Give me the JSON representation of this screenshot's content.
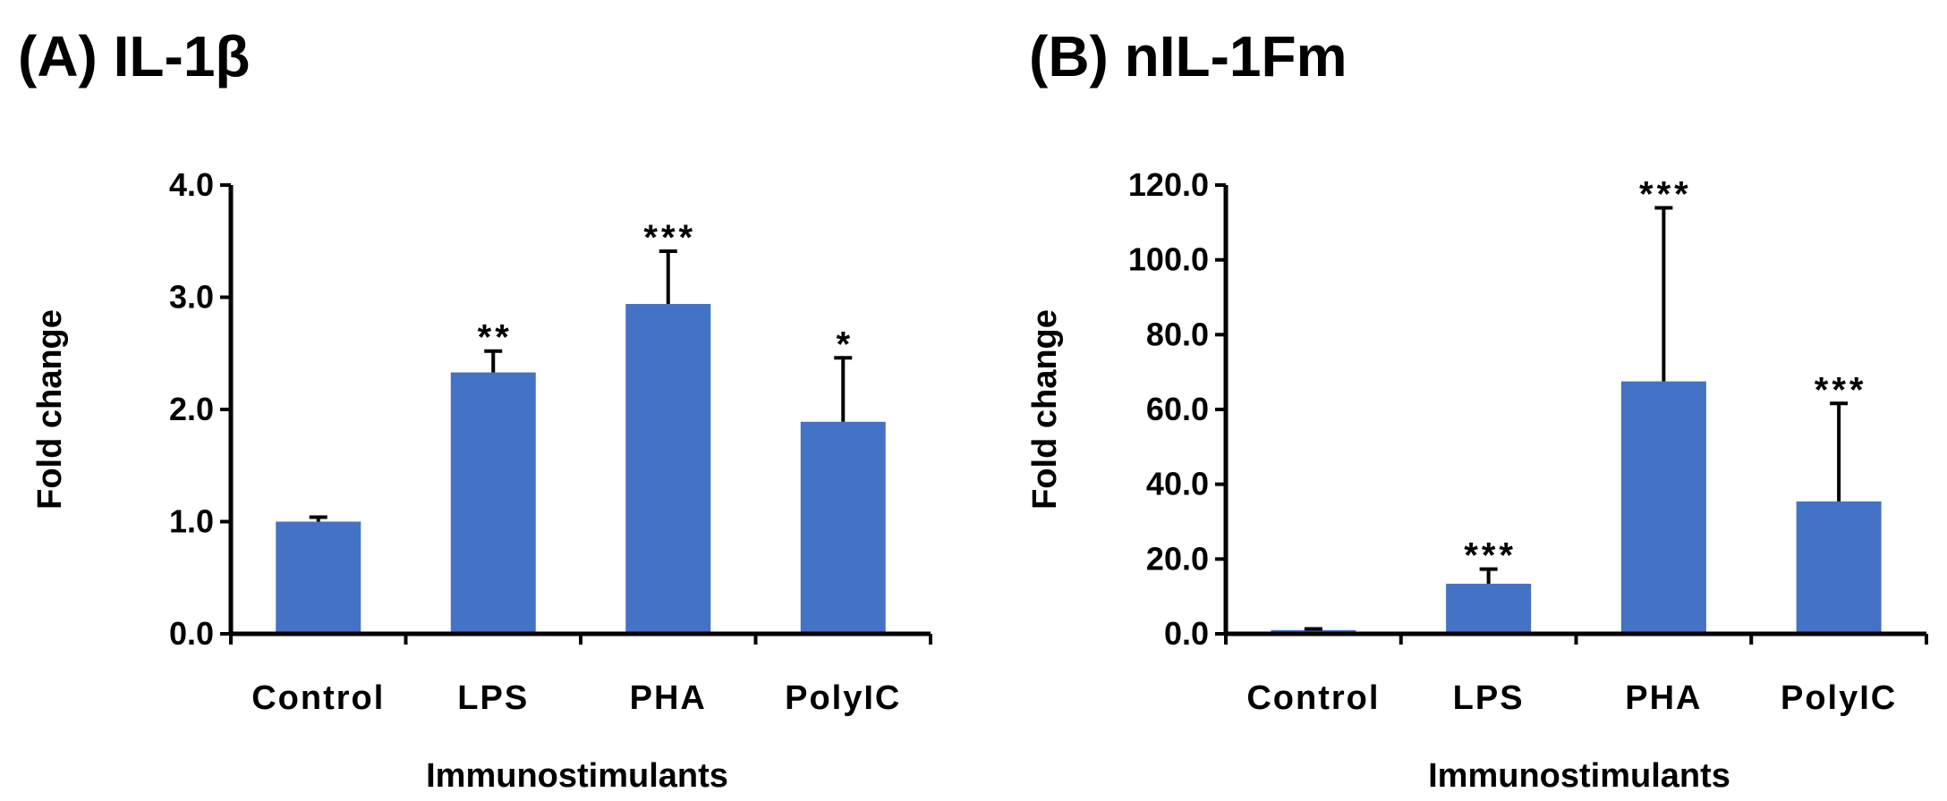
{
  "chart_data": [
    {
      "type": "bar",
      "title": "(A) IL-1β",
      "xlabel": "Immunostimulants",
      "ylabel": "Fold change",
      "categories": [
        "Control",
        "LPS",
        "PHA",
        "PolyIC"
      ],
      "values": [
        1.0,
        2.33,
        2.94,
        1.89
      ],
      "errors": [
        0.04,
        0.19,
        0.47,
        0.57
      ],
      "significance": [
        "",
        "**",
        "***",
        "*"
      ],
      "ylim": [
        0,
        4.0
      ],
      "yticks": [
        0.0,
        1.0,
        2.0,
        3.0,
        4.0
      ],
      "ytick_labels": [
        "0.0",
        "1.0",
        "2.0",
        "3.0",
        "4.0"
      ],
      "bar_color": "#4472C4",
      "grid": false,
      "legend": "none"
    },
    {
      "type": "bar",
      "title": "(B) nIL-1Fm",
      "xlabel": "Immunostimulants",
      "ylabel": "Fold change",
      "categories": [
        "Control",
        "LPS",
        "PHA",
        "PolyIC"
      ],
      "values": [
        1.0,
        13.4,
        67.5,
        35.4
      ],
      "errors": [
        0.3,
        3.9,
        46.4,
        26.2
      ],
      "significance": [
        "",
        "***",
        "***",
        "***"
      ],
      "ylim": [
        0,
        120.0
      ],
      "yticks": [
        0.0,
        20.0,
        40.0,
        60.0,
        80.0,
        100.0,
        120.0
      ],
      "ytick_labels": [
        "0.0",
        "20.0",
        "40.0",
        "60.0",
        "80.0",
        "100.0",
        "120.0"
      ],
      "bar_color": "#4472C4",
      "grid": false,
      "legend": "none"
    }
  ]
}
